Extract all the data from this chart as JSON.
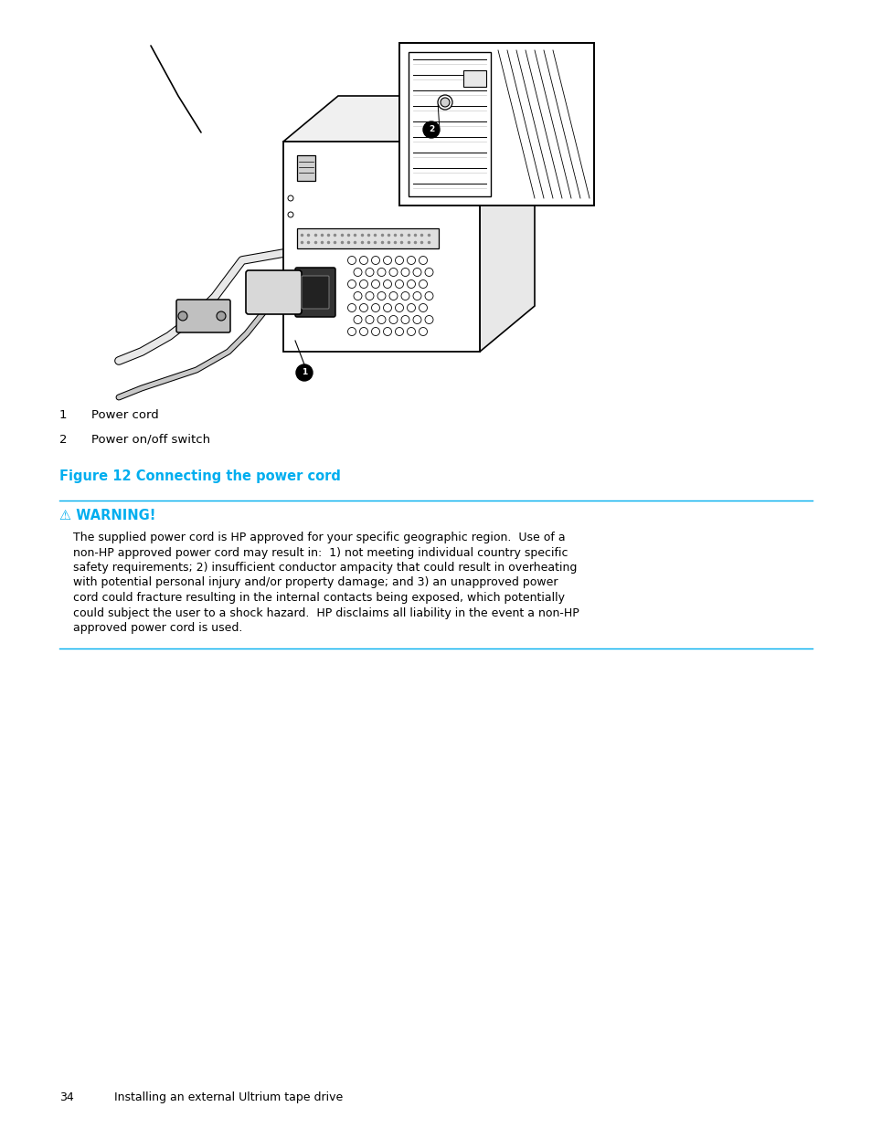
{
  "background_color": "#ffffff",
  "label1_num": "1",
  "label1_text": "Power cord",
  "label2_num": "2",
  "label2_text": "Power on/off switch",
  "figure_caption": "Figure 12 Connecting the power cord",
  "figure_caption_color": "#00aeef",
  "warning_title": "⚠ WARNING!",
  "warning_title_color": "#00aeef",
  "warning_line1": "The supplied power cord is HP approved for your specific geographic region.  Use of a",
  "warning_line2": "non-HP approved power cord may result in:  1) not meeting individual country specific",
  "warning_line3": "safety requirements; 2) insufficient conductor ampacity that could result in overheating",
  "warning_line4": "with potential personal injury and/or property damage; and 3) an unapproved power",
  "warning_line5": "cord could fracture resulting in the internal contacts being exposed, which potentially",
  "warning_line6": "could subject the user to a shock hazard.  HP disclaims all liability in the event a non-HP",
  "warning_line7": "approved power cord is used.",
  "warning_text_color": "#000000",
  "separator_color": "#00aeef",
  "footer_page": "34",
  "footer_text": "Installing an external Ultrium tape drive",
  "footer_color": "#000000"
}
